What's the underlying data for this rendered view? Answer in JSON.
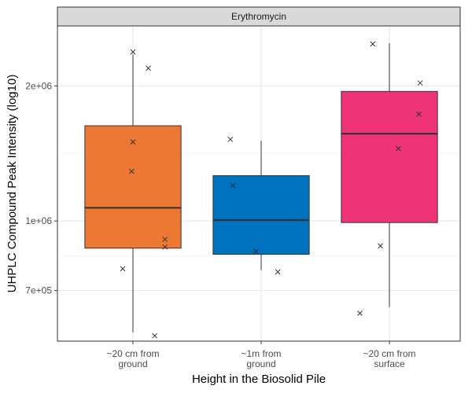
{
  "chart_data": {
    "type": "boxplot",
    "panel_title": "Erythromycin",
    "xlabel": "Height in the Biosolid Pile",
    "ylabel": "UHPLC Compound Peak Intensity (log10)",
    "y_scale": "log10",
    "ylim": [
      540000,
      2720000
    ],
    "y_ticks": [
      {
        "value": 2000000,
        "label": "2e+06"
      },
      {
        "value": 1000000,
        "label": "1e+06"
      },
      {
        "value": 700000,
        "label": "7e+05"
      }
    ],
    "y_minor_ticks": [
      1414214,
      836660
    ],
    "grid": true,
    "legend": "none",
    "categories": [
      {
        "label_lines": [
          "~20 cm from",
          "ground"
        ],
        "color": "#ED7833",
        "box": {
          "whisker_low": 565000,
          "q1": 870000,
          "median": 1070000,
          "q3": 1630000,
          "whisker_high": 2350000
        },
        "points": [
          {
            "dx": 0.0,
            "y": 2380000
          },
          {
            "dx": 0.12,
            "y": 2190000
          },
          {
            "dx": 0.0,
            "y": 1500000
          },
          {
            "dx": -0.01,
            "y": 1290000
          },
          {
            "dx": 0.25,
            "y": 910000
          },
          {
            "dx": 0.25,
            "y": 875000
          },
          {
            "dx": -0.08,
            "y": 783000
          },
          {
            "dx": 0.17,
            "y": 555000
          }
        ]
      },
      {
        "label_lines": [
          "~1m from",
          "ground"
        ],
        "color": "#0072BD",
        "box": {
          "whisker_low": 777000,
          "q1": 843000,
          "median": 1005000,
          "q3": 1262000,
          "whisker_high": 1510000
        },
        "points": [
          {
            "dx": -0.24,
            "y": 1520000
          },
          {
            "dx": -0.22,
            "y": 1200000
          },
          {
            "dx": -0.04,
            "y": 855000
          },
          {
            "dx": 0.13,
            "y": 770000
          }
        ]
      },
      {
        "label_lines": [
          "~20 cm from",
          "surface"
        ],
        "color": "#EE3377",
        "box": {
          "whisker_low": 643000,
          "q1": 992000,
          "median": 1565000,
          "q3": 1944000,
          "whisker_high": 2490000
        },
        "points": [
          {
            "dx": -0.13,
            "y": 2480000
          },
          {
            "dx": 0.24,
            "y": 2030000
          },
          {
            "dx": 0.23,
            "y": 1730000
          },
          {
            "dx": 0.07,
            "y": 1450000
          },
          {
            "dx": -0.07,
            "y": 880000
          },
          {
            "dx": -0.23,
            "y": 623000
          }
        ]
      }
    ]
  }
}
